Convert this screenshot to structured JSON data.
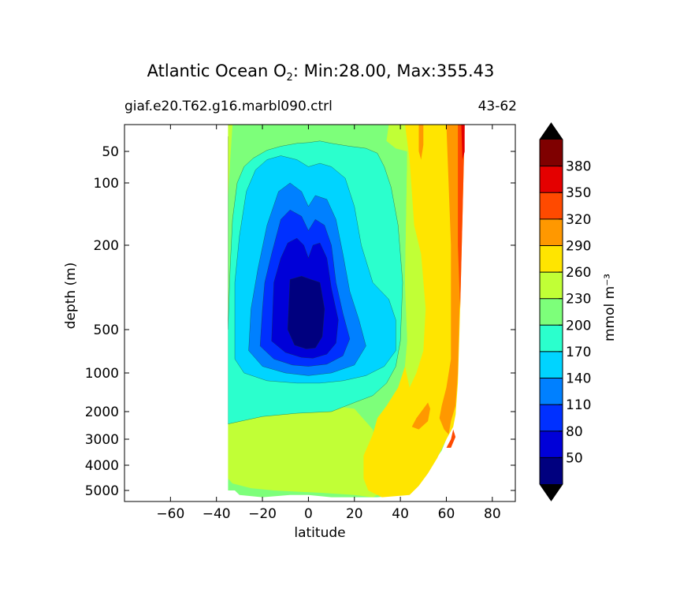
{
  "chart_data": {
    "type": "contour",
    "title": {
      "prefix": "Atlantic Ocean O",
      "subscript": "2",
      "suffix": ": Min:28.00, Max:355.43"
    },
    "subtitle_left": "giaf.e20.T62.g16.marbl090.ctrl",
    "subtitle_right": "43-62",
    "xlabel": "latitude",
    "ylabel": "depth (m)",
    "xlim": [
      -80,
      90
    ],
    "x_ticks": [
      -60,
      -40,
      -20,
      0,
      20,
      40,
      60,
      80
    ],
    "x_tick_labels": [
      "−60",
      "−40",
      "−20",
      "0",
      "20",
      "40",
      "60",
      "80"
    ],
    "y_ticks": [
      50,
      100,
      200,
      500,
      1000,
      2000,
      3000,
      4000,
      5000
    ],
    "y_tick_labels": [
      "50",
      "100",
      "200",
      "500",
      "1000",
      "2000",
      "3000",
      "4000",
      "5000"
    ],
    "colorbar": {
      "label": "mmol m⁻³",
      "levels": [
        20,
        50,
        80,
        110,
        140,
        170,
        200,
        230,
        260,
        290,
        320,
        350,
        380,
        410
      ],
      "tick_labels": [
        "50",
        "80",
        "110",
        "140",
        "170",
        "200",
        "230",
        "260",
        "290",
        "320",
        "350",
        "380"
      ],
      "colors": [
        "#00007f",
        "#0000d8",
        "#0030ff",
        "#0080ff",
        "#00d4ff",
        "#2bffcd",
        "#7dff7a",
        "#c1ff36",
        "#ffe500",
        "#ff9800",
        "#ff4a00",
        "#e40000",
        "#7f0000"
      ],
      "extend": "both"
    },
    "contours": [
      {
        "value": 180,
        "points": [
          [
            -35,
            30
          ],
          [
            -35,
            2400
          ],
          [
            -20,
            2150
          ],
          [
            -5,
            2050
          ],
          [
            10,
            2000
          ],
          [
            20,
            1700
          ],
          [
            28,
            1500
          ],
          [
            34,
            1200
          ],
          [
            38,
            900
          ],
          [
            40,
            600
          ],
          [
            41,
            300
          ],
          [
            39,
            160
          ],
          [
            36,
            105
          ],
          [
            33,
            70
          ],
          [
            30,
            52
          ],
          [
            25,
            45
          ],
          [
            18,
            42
          ],
          [
            10,
            38
          ],
          [
            5,
            35
          ],
          [
            0,
            37
          ],
          [
            -5,
            38
          ],
          [
            -12,
            42
          ],
          [
            -18,
            48
          ],
          [
            -24,
            58
          ],
          [
            -28,
            70
          ],
          [
            -31,
            100
          ],
          [
            -33,
            150
          ],
          [
            -34,
            250
          ],
          [
            -35,
            500
          ]
        ]
      },
      {
        "value": 150,
        "points": [
          [
            -32,
            300
          ],
          [
            -32,
            800
          ],
          [
            -28,
            1000
          ],
          [
            -18,
            1150
          ],
          [
            -5,
            1200
          ],
          [
            5,
            1200
          ],
          [
            15,
            1150
          ],
          [
            25,
            1050
          ],
          [
            33,
            900
          ],
          [
            38,
            700
          ],
          [
            38,
            450
          ],
          [
            35,
            360
          ],
          [
            28,
            300
          ],
          [
            23,
            200
          ],
          [
            20,
            130
          ],
          [
            16,
            90
          ],
          [
            10,
            70
          ],
          [
            5,
            65
          ],
          [
            0,
            70
          ],
          [
            -5,
            60
          ],
          [
            -12,
            55
          ],
          [
            -18,
            60
          ],
          [
            -23,
            75
          ],
          [
            -27,
            110
          ],
          [
            -30,
            180
          ]
        ]
      },
      {
        "value": 120,
        "points": [
          [
            -25,
            400
          ],
          [
            -26,
            700
          ],
          [
            -20,
            900
          ],
          [
            -10,
            1000
          ],
          [
            0,
            1050
          ],
          [
            10,
            1000
          ],
          [
            20,
            880
          ],
          [
            25,
            650
          ],
          [
            22,
            450
          ],
          [
            18,
            330
          ],
          [
            15,
            220
          ],
          [
            12,
            150
          ],
          [
            8,
            120
          ],
          [
            3,
            115
          ],
          [
            0,
            130
          ],
          [
            -3,
            110
          ],
          [
            -8,
            100
          ],
          [
            -13,
            110
          ],
          [
            -18,
            160
          ],
          [
            -22,
            260
          ]
        ]
      },
      {
        "value": 90,
        "points": [
          [
            -20,
            400
          ],
          [
            -21,
            650
          ],
          [
            -15,
            800
          ],
          [
            -7,
            880
          ],
          [
            0,
            900
          ],
          [
            8,
            870
          ],
          [
            15,
            760
          ],
          [
            18,
            580
          ],
          [
            15,
            420
          ],
          [
            12,
            300
          ],
          [
            10,
            200
          ],
          [
            7,
            160
          ],
          [
            3,
            150
          ],
          [
            0,
            170
          ],
          [
            -3,
            145
          ],
          [
            -8,
            135
          ],
          [
            -12,
            150
          ],
          [
            -16,
            220
          ],
          [
            -19,
            300
          ]
        ]
      },
      {
        "value": 60,
        "points": [
          [
            -15,
            300
          ],
          [
            -16,
            600
          ],
          [
            -10,
            720
          ],
          [
            -3,
            780
          ],
          [
            2,
            790
          ],
          [
            8,
            740
          ],
          [
            12,
            620
          ],
          [
            13,
            450
          ],
          [
            10,
            320
          ],
          [
            8,
            230
          ],
          [
            5,
            195
          ],
          [
            2,
            200
          ],
          [
            0,
            230
          ],
          [
            -2,
            200
          ],
          [
            -5,
            185
          ],
          [
            -9,
            195
          ],
          [
            -12,
            230
          ]
        ]
      },
      {
        "value": 40,
        "points": [
          [
            -8,
            290
          ],
          [
            -9,
            500
          ],
          [
            -6,
            640
          ],
          [
            -1,
            680
          ],
          [
            3,
            670
          ],
          [
            6,
            560
          ],
          [
            7,
            400
          ],
          [
            5,
            300
          ],
          [
            1,
            290
          ],
          [
            -3,
            280
          ]
        ]
      }
    ]
  }
}
